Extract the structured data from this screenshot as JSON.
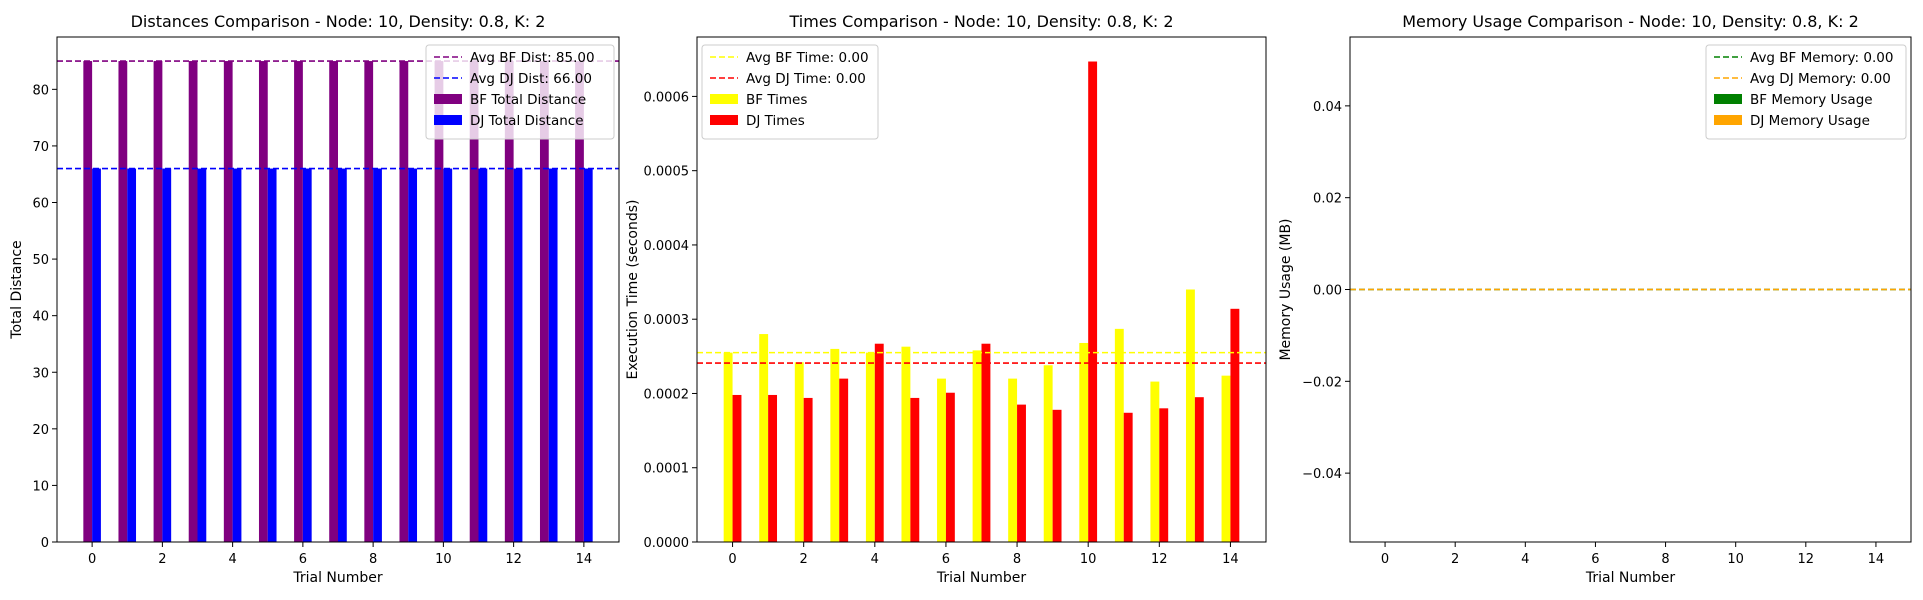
{
  "chart_data": [
    {
      "type": "bar",
      "title": "Distances Comparison - Node: 10, Density: 0.8, K: 2",
      "xlabel": "Trial Number",
      "ylabel": "Total Distance",
      "xlim": [
        -1,
        15
      ],
      "ylim": [
        0,
        89.25
      ],
      "xticks": [
        "0",
        "2",
        "4",
        "6",
        "8",
        "10",
        "12",
        "14"
      ],
      "yticks": [
        "0",
        "10",
        "20",
        "30",
        "40",
        "50",
        "60",
        "70",
        "80"
      ],
      "categories": [
        0,
        1,
        2,
        3,
        4,
        5,
        6,
        7,
        8,
        9,
        10,
        11,
        12,
        13,
        14
      ],
      "series": [
        {
          "name": "BF Total Distance",
          "color": "#800080",
          "values": [
            85,
            85,
            85,
            85,
            85,
            85,
            85,
            85,
            85,
            85,
            85,
            85,
            85,
            85,
            85
          ]
        },
        {
          "name": "DJ Total Distance",
          "color": "#0000ff",
          "values": [
            66,
            66,
            66,
            66,
            66,
            66,
            66,
            66,
            66,
            66,
            66,
            66,
            66,
            66,
            66
          ]
        }
      ],
      "hlines": [
        {
          "name": "Avg BF Dist: 85.00",
          "value": 85.0,
          "color": "#800080"
        },
        {
          "name": "Avg DJ Dist: 66.00",
          "value": 66.0,
          "color": "#0000ff"
        }
      ],
      "legend_loc": "upper right"
    },
    {
      "type": "bar",
      "title": "Times Comparison - Node: 10, Density: 0.8, K: 2",
      "xlabel": "Trial Number",
      "ylabel": "Execution Time (seconds)",
      "xlim": [
        -1,
        15
      ],
      "ylim": [
        0,
        0.00068
      ],
      "xticks": [
        "0",
        "2",
        "4",
        "6",
        "8",
        "10",
        "12",
        "14"
      ],
      "yticks": [
        "0.0000",
        "0.0001",
        "0.0002",
        "0.0003",
        "0.0004",
        "0.0005",
        "0.0006"
      ],
      "categories": [
        0,
        1,
        2,
        3,
        4,
        5,
        6,
        7,
        8,
        9,
        10,
        11,
        12,
        13,
        14
      ],
      "series": [
        {
          "name": "BF Times",
          "color": "#ffff00",
          "values": [
            0.000255,
            0.00028,
            0.000242,
            0.00026,
            0.000255,
            0.000263,
            0.00022,
            0.000258,
            0.00022,
            0.000238,
            0.000268,
            0.000287,
            0.000216,
            0.00034,
            0.000224
          ]
        },
        {
          "name": "DJ Times",
          "color": "#ff0000",
          "values": [
            0.000198,
            0.000198,
            0.000194,
            0.00022,
            0.000267,
            0.000194,
            0.000201,
            0.000267,
            0.000185,
            0.000178,
            0.000647,
            0.000174,
            0.00018,
            0.000195,
            0.000314
          ]
        }
      ],
      "hlines": [
        {
          "name": "Avg BF Time: 0.00",
          "value": 0.000255,
          "color": "#ffff00"
        },
        {
          "name": "Avg DJ Time: 0.00",
          "value": 0.000241,
          "color": "#ff0000"
        }
      ],
      "legend_loc": "upper left"
    },
    {
      "type": "bar",
      "title": "Memory Usage Comparison - Node: 10, Density: 0.8, K: 2",
      "xlabel": "Trial Number",
      "ylabel": "Memory Usage (MB)",
      "xlim": [
        -1,
        15
      ],
      "ylim": [
        -0.055,
        0.055
      ],
      "xticks": [
        "0",
        "2",
        "4",
        "6",
        "8",
        "10",
        "12",
        "14"
      ],
      "yticks": [
        "−0.04",
        "−0.02",
        "0.00",
        "0.02",
        "0.04"
      ],
      "categories": [
        0,
        1,
        2,
        3,
        4,
        5,
        6,
        7,
        8,
        9,
        10,
        11,
        12,
        13,
        14
      ],
      "series": [
        {
          "name": "BF Memory Usage",
          "color": "#008000",
          "values": [
            0,
            0,
            0,
            0,
            0,
            0,
            0,
            0,
            0,
            0,
            0,
            0,
            0,
            0,
            0
          ]
        },
        {
          "name": "DJ Memory Usage",
          "color": "#ffa500",
          "values": [
            0,
            0,
            0,
            0,
            0,
            0,
            0,
            0,
            0,
            0,
            0,
            0,
            0,
            0,
            0
          ]
        }
      ],
      "hlines": [
        {
          "name": "Avg BF Memory: 0.00",
          "value": 0.0,
          "color": "#008000"
        },
        {
          "name": "Avg DJ Memory: 0.00",
          "value": 0.0,
          "color": "#ffa500"
        }
      ],
      "legend_loc": "upper right"
    }
  ]
}
